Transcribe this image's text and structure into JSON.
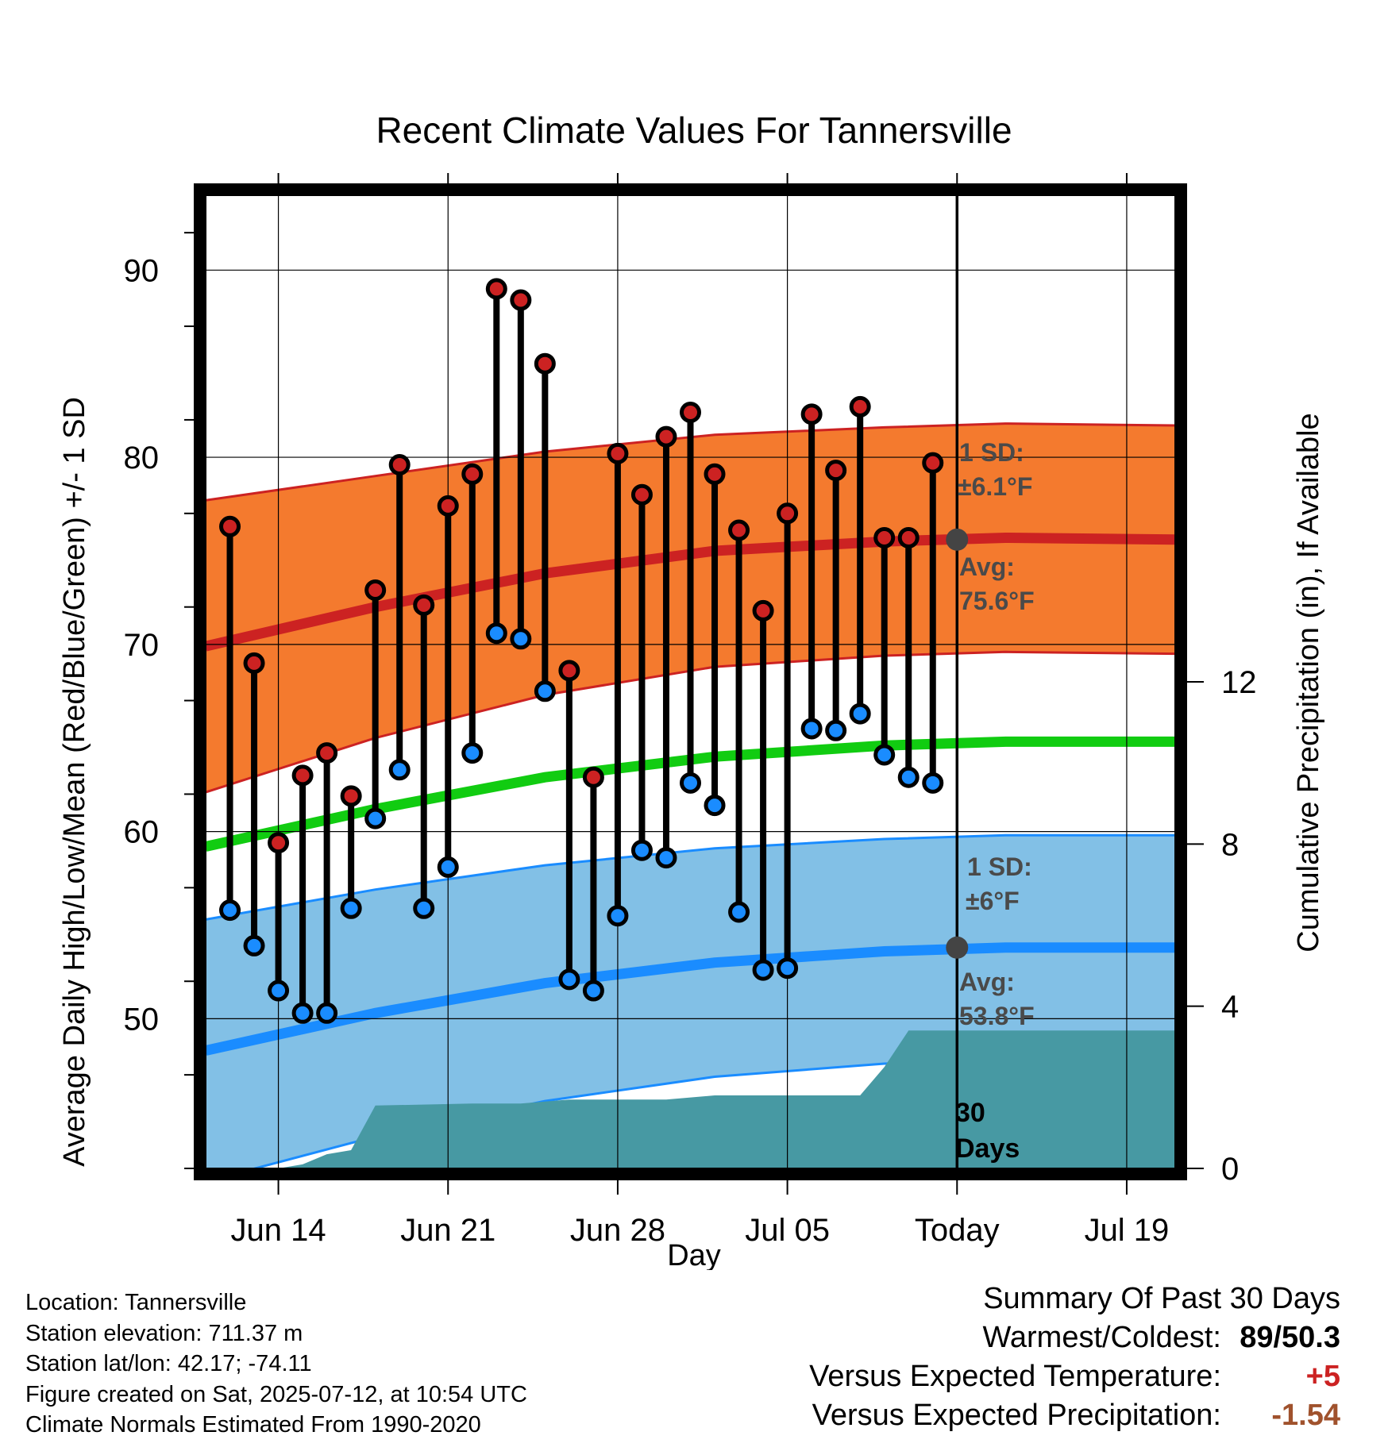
{
  "chart_data": {
    "type": "line",
    "title": "Recent Climate Values For Tannersville",
    "xlabel": "Day",
    "ylabel": "Average Daily High/Low/Mean (Red/Blue/Green) +/- 1 SD",
    "y2label": "Cumulative Precipitation (in), If Available",
    "x_range": [
      "2025-06-11",
      "2025-07-21"
    ],
    "ylim": [
      42,
      94
    ],
    "y_ticks": [
      50,
      60,
      70,
      80,
      90
    ],
    "y2lim": [
      0,
      24
    ],
    "y2_ticks": [
      0,
      4,
      8,
      12
    ],
    "x_ticks": [
      {
        "date": "2025-06-14",
        "label": "Jun 14"
      },
      {
        "date": "2025-06-21",
        "label": "Jun 21"
      },
      {
        "date": "2025-06-28",
        "label": "Jun 28"
      },
      {
        "date": "2025-07-05",
        "label": "Jul 05"
      },
      {
        "date": "2025-07-12",
        "label": "Today"
      },
      {
        "date": "2025-07-19",
        "label": "Jul 19"
      }
    ],
    "grid": true,
    "colors": {
      "high_band": "#f47a2e",
      "high_line": "#cc2222",
      "low_band": "#82c0e6",
      "low_line": "#1a8cff",
      "mean_line": "#11cc11",
      "precip": "#4799a3",
      "high_marker": "#cc2222",
      "low_marker": "#1a8cff",
      "today_marker": "#444444"
    },
    "normals": {
      "dates": [
        "2025-06-11",
        "2025-06-18",
        "2025-06-25",
        "2025-07-02",
        "2025-07-09",
        "2025-07-14",
        "2025-07-21"
      ],
      "high_avg": [
        69.9,
        72.0,
        73.8,
        75.0,
        75.5,
        75.7,
        75.6
      ],
      "high_sd": [
        7.8,
        7.0,
        6.5,
        6.2,
        6.1,
        6.1,
        6.1
      ],
      "low_avg": [
        48.3,
        50.3,
        51.9,
        53.0,
        53.6,
        53.8,
        53.8
      ],
      "low_sd": [
        7.0,
        6.6,
        6.3,
        6.1,
        6.0,
        6.0,
        6.0
      ],
      "mean_avg": [
        59.2,
        61.2,
        62.9,
        64.0,
        64.6,
        64.8,
        64.8
      ]
    },
    "daily": {
      "dates": [
        "2025-06-12",
        "2025-06-13",
        "2025-06-14",
        "2025-06-15",
        "2025-06-16",
        "2025-06-17",
        "2025-06-18",
        "2025-06-19",
        "2025-06-20",
        "2025-06-21",
        "2025-06-22",
        "2025-06-23",
        "2025-06-24",
        "2025-06-25",
        "2025-06-26",
        "2025-06-27",
        "2025-06-28",
        "2025-06-29",
        "2025-06-30",
        "2025-07-01",
        "2025-07-02",
        "2025-07-03",
        "2025-07-04",
        "2025-07-05",
        "2025-07-06",
        "2025-07-07",
        "2025-07-08",
        "2025-07-09",
        "2025-07-10",
        "2025-07-11"
      ],
      "high": [
        76.3,
        69.0,
        59.4,
        63.0,
        64.2,
        61.9,
        72.9,
        79.6,
        72.1,
        77.4,
        79.1,
        89.0,
        88.4,
        85.0,
        68.6,
        62.9,
        80.2,
        78.0,
        81.1,
        82.4,
        79.1,
        76.1,
        71.8,
        77.0,
        82.3,
        79.3,
        82.7,
        75.7,
        75.7,
        79.7
      ],
      "low": [
        55.8,
        53.9,
        51.5,
        50.3,
        50.3,
        55.9,
        60.7,
        63.3,
        55.9,
        58.1,
        64.2,
        70.6,
        70.3,
        67.5,
        52.1,
        51.5,
        55.5,
        59.0,
        58.6,
        62.6,
        61.4,
        55.7,
        52.6,
        52.7,
        65.5,
        65.4,
        66.3,
        64.1,
        62.9,
        62.6
      ]
    },
    "precip_cumulative": {
      "dates": [
        "2025-06-11",
        "2025-06-14",
        "2025-06-15",
        "2025-06-16",
        "2025-06-17",
        "2025-06-18",
        "2025-06-22",
        "2025-06-24",
        "2025-06-25",
        "2025-06-26",
        "2025-06-30",
        "2025-07-01",
        "2025-07-02",
        "2025-07-08",
        "2025-07-09",
        "2025-07-10",
        "2025-07-21"
      ],
      "values": [
        0.0,
        0.0,
        0.1,
        0.35,
        0.45,
        1.55,
        1.6,
        1.6,
        1.65,
        1.7,
        1.7,
        1.75,
        1.8,
        1.8,
        2.5,
        3.4,
        3.4
      ]
    },
    "today": {
      "date": "2025-07-12",
      "high_avg": 75.6,
      "low_avg": 53.8
    }
  },
  "annotations": {
    "high_sd_label": "1 SD:",
    "high_sd_value": "±6.1°F",
    "high_avg_label": "Avg:",
    "high_avg_value": "75.6°F",
    "low_sd_label": "1 SD:",
    "low_sd_value": "±6°F",
    "low_avg_label": "Avg:",
    "low_avg_value": "53.8°F",
    "period_num": "30",
    "period_unit": "Days"
  },
  "footer": {
    "location": "Location: Tannersville",
    "elevation": "Station elevation: 711.37 m",
    "latlon": "Station lat/lon: 42.17; -74.11",
    "created": "Figure created on Sat, 2025-07-12, at 10:54 UTC",
    "normals": "Climate Normals Estimated From 1990-2020"
  },
  "summary": {
    "heading": "Summary Of Past 30 Days",
    "warmest_coldest_label": "Warmest/Coldest:",
    "warmest_coldest_value": "89/50.3",
    "temp_label": "Versus Expected Temperature:",
    "temp_value": "+5",
    "temp_color": "#cc2222",
    "precip_label": "Versus Expected Precipitation:",
    "precip_value": "-1.54",
    "precip_color": "#a0522d"
  }
}
